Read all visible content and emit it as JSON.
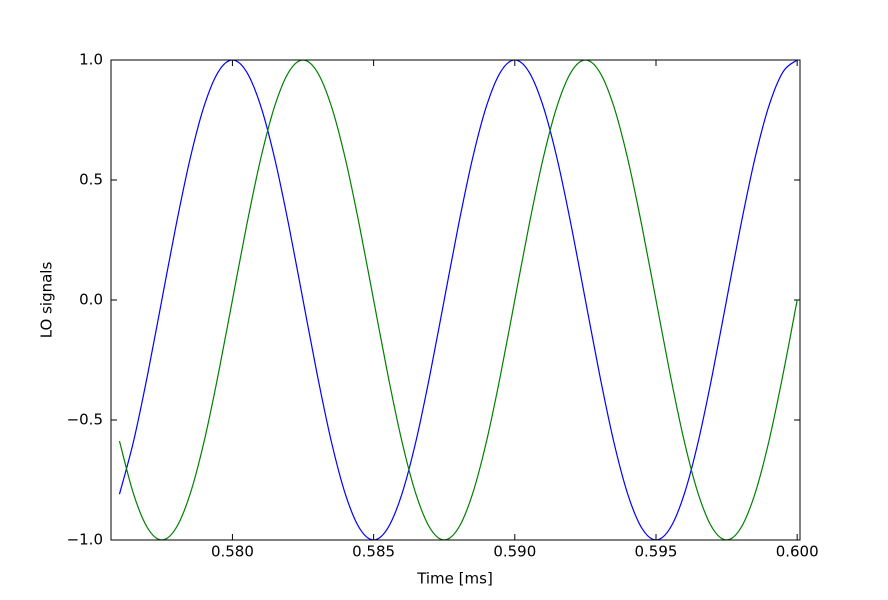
{
  "chart_data": {
    "type": "line",
    "xlabel": "Time [ms]",
    "ylabel": "LO signals",
    "x": [
      0.576,
      0.5765,
      0.577,
      0.5775,
      0.578,
      0.5785,
      0.579,
      0.5795,
      0.58,
      0.5805,
      0.581,
      0.5815,
      0.582,
      0.5825,
      0.583,
      0.5835,
      0.584,
      0.5845,
      0.585,
      0.5855,
      0.586,
      0.5865,
      0.587,
      0.5875,
      0.588,
      0.5885,
      0.589,
      0.5895,
      0.59,
      0.5905,
      0.591,
      0.5915,
      0.592,
      0.5925,
      0.593,
      0.5935,
      0.594,
      0.5945,
      0.595,
      0.5955,
      0.596,
      0.5965,
      0.597,
      0.5975,
      0.598,
      0.5985,
      0.599,
      0.5995,
      0.6
    ],
    "series": [
      {
        "color": "#0000ff",
        "values": [
          -0.809,
          -0.588,
          -0.309,
          0,
          0.309,
          0.588,
          0.809,
          0.951,
          1,
          0.951,
          0.809,
          0.588,
          0.309,
          0,
          -0.309,
          -0.588,
          -0.809,
          -0.951,
          -1,
          -0.951,
          -0.809,
          -0.588,
          -0.309,
          0,
          0.309,
          0.588,
          0.809,
          0.951,
          1,
          0.951,
          0.809,
          0.588,
          0.309,
          0,
          -0.309,
          -0.588,
          -0.809,
          -0.951,
          -1,
          -0.951,
          -0.809,
          -0.588,
          -0.309,
          0,
          0.309,
          0.588,
          0.809,
          0.951,
          1
        ]
      },
      {
        "color": "#008000",
        "values": [
          -0.588,
          -0.809,
          -0.951,
          -1,
          -0.951,
          -0.809,
          -0.588,
          -0.309,
          0,
          0.309,
          0.588,
          0.809,
          0.951,
          1,
          0.951,
          0.809,
          0.588,
          0.309,
          0,
          -0.309,
          -0.588,
          -0.809,
          -0.951,
          -1,
          -0.951,
          -0.809,
          -0.588,
          -0.309,
          0,
          0.309,
          0.588,
          0.809,
          0.951,
          1,
          0.951,
          0.809,
          0.588,
          0.309,
          0,
          -0.309,
          -0.588,
          -0.809,
          -0.951,
          -1,
          -0.951,
          -0.809,
          -0.588,
          -0.309,
          0
        ]
      }
    ],
    "xlim": [
      0.5757,
      0.6001
    ],
    "xticks": [
      {
        "value": 0.58,
        "label": "0.580"
      },
      {
        "value": 0.585,
        "label": "0.585"
      },
      {
        "value": 0.59,
        "label": "0.590"
      },
      {
        "value": 0.595,
        "label": "0.595"
      },
      {
        "value": 0.6,
        "label": "0.600"
      }
    ],
    "ylim": [
      -1,
      1
    ],
    "yticks": [
      {
        "value": -1,
        "label": "−1.0"
      },
      {
        "value": -0.5,
        "label": "−0.5"
      },
      {
        "value": 0,
        "label": "0.0"
      },
      0.5,
      {
        "value": 1,
        "label": "1.0"
      }
    ],
    "grid": false
  }
}
